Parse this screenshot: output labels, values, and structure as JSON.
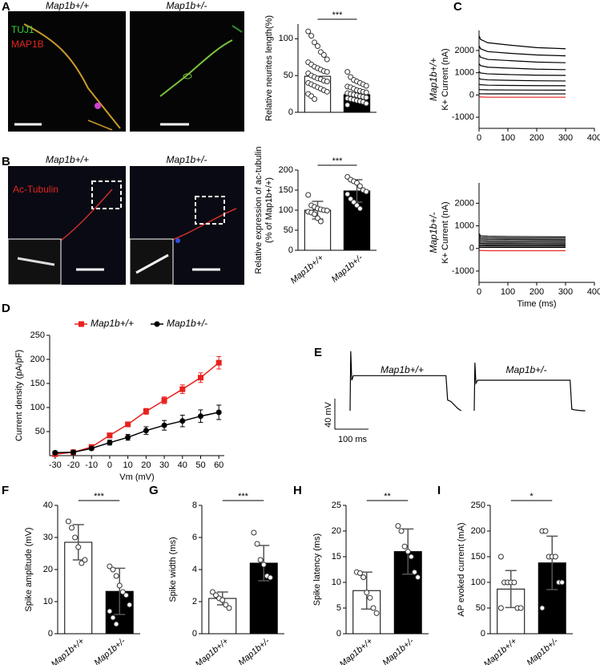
{
  "panel_labels": [
    "A",
    "B",
    "C",
    "D",
    "E",
    "F",
    "G",
    "H",
    "I"
  ],
  "images": {
    "A": {
      "stain_1": "TUJ1",
      "stain_2": "MAP1B",
      "left": "Map1b+/+",
      "right": "Map1b+/-"
    },
    "B": {
      "stain": "Ac-Tubulin",
      "left": "Map1b+/+",
      "right": "Map1b+/-"
    }
  },
  "chart_data": [
    {
      "type": "bar",
      "ylabel": "Relative neurites length(%)",
      "categories": [
        null,
        null
      ],
      "values": [
        49,
        24
      ],
      "colors": [
        "#ffffff",
        "#000000"
      ],
      "ylim": [
        0,
        120
      ],
      "yticks": [
        0,
        50,
        100
      ],
      "significance": "***",
      "points": [
        [
          110,
          104,
          95,
          90,
          82,
          78,
          72,
          68,
          65,
          62,
          60,
          58,
          56,
          55,
          53,
          50,
          48,
          46,
          45,
          43,
          42,
          40,
          38,
          36,
          34,
          32,
          30,
          28,
          25,
          22,
          18
        ],
        [
          55,
          48,
          44,
          42,
          40,
          38,
          36,
          35,
          34,
          32,
          30,
          29,
          28,
          27,
          26,
          25,
          24,
          23,
          22,
          21,
          20,
          19,
          18,
          17,
          16,
          15,
          14,
          12,
          10
        ]
      ]
    },
    {
      "type": "bar",
      "ylabel": [
        "Relative expression of ac-tubulin",
        "(% of Map1b+/+)"
      ],
      "categories": [
        "Map1b+/+",
        "Map1b+/-"
      ],
      "values": [
        100,
        148
      ],
      "errors": [
        22,
        28
      ],
      "colors": [
        "#ffffff",
        "#000000"
      ],
      "ylim": [
        0,
        200
      ],
      "yticks": [
        0,
        50,
        100,
        150,
        200
      ],
      "significance": "***",
      "points": [
        [
          138,
          112,
          108,
          104,
          102,
          100,
          99,
          96,
          94,
          90,
          80,
          72
        ],
        [
          183,
          176,
          172,
          168,
          160,
          150,
          146,
          140,
          128,
          120,
          112,
          104
        ]
      ]
    },
    {
      "type": "line",
      "label": "Map1b+/+",
      "ylabel": "K+ Current (nA)",
      "xlim": [
        0,
        400
      ],
      "xticks": [
        0,
        100,
        200,
        300,
        400
      ],
      "ylim": [
        -1500,
        2900
      ],
      "yticks": [
        -1000,
        0,
        1000,
        2000
      ],
      "x": [
        1,
        5,
        30,
        100,
        200,
        300
      ],
      "series": [
        {
          "color": "#000000",
          "values": [
            2650,
            2500,
            2350,
            2250,
            2130,
            2080
          ]
        },
        {
          "color": "#000000",
          "values": [
            2200,
            2080,
            1950,
            1880,
            1800,
            1760
          ]
        },
        {
          "color": "#000000",
          "values": [
            1800,
            1700,
            1600,
            1550,
            1480,
            1450
          ]
        },
        {
          "color": "#000000",
          "values": [
            1400,
            1320,
            1250,
            1210,
            1160,
            1140
          ]
        },
        {
          "color": "#000000",
          "values": [
            1050,
            990,
            950,
            920,
            890,
            880
          ]
        },
        {
          "color": "#000000",
          "values": [
            750,
            710,
            680,
            660,
            640,
            630
          ]
        },
        {
          "color": "#000000",
          "values": [
            480,
            460,
            440,
            430,
            420,
            415
          ]
        },
        {
          "color": "#000000",
          "values": [
            250,
            240,
            230,
            225,
            220,
            218
          ]
        },
        {
          "color": "#000000",
          "values": [
            60,
            55,
            50,
            50,
            48,
            48
          ]
        },
        {
          "color": "#e8221f",
          "values": [
            -80,
            -90,
            -100,
            -100,
            -100,
            -100
          ]
        }
      ]
    },
    {
      "type": "line",
      "label": "Map1b+/-",
      "ylabel": "K+ Current (nA)",
      "xlabel": "Time (ms)",
      "xlim": [
        0,
        400
      ],
      "xticks": [
        0,
        100,
        200,
        300,
        400
      ],
      "ylim": [
        -1500,
        2900
      ],
      "yticks": [
        -1000,
        0,
        1000,
        2000
      ],
      "x": [
        1,
        5,
        30,
        100,
        200,
        300
      ],
      "series": [
        {
          "color": "#000000",
          "values": [
            650,
            560,
            540,
            530,
            520,
            510
          ]
        },
        {
          "color": "#000000",
          "values": [
            560,
            490,
            470,
            460,
            455,
            450
          ]
        },
        {
          "color": "#000000",
          "values": [
            470,
            420,
            405,
            400,
            395,
            390
          ]
        },
        {
          "color": "#000000",
          "values": [
            390,
            350,
            340,
            335,
            330,
            330
          ]
        },
        {
          "color": "#000000",
          "values": [
            310,
            280,
            275,
            270,
            268,
            265
          ]
        },
        {
          "color": "#000000",
          "values": [
            240,
            220,
            215,
            212,
            210,
            208
          ]
        },
        {
          "color": "#000000",
          "values": [
            170,
            160,
            155,
            153,
            152,
            150
          ]
        },
        {
          "color": "#000000",
          "values": [
            110,
            105,
            100,
            98,
            97,
            96
          ]
        },
        {
          "color": "#000000",
          "values": [
            50,
            48,
            46,
            45,
            45,
            45
          ]
        },
        {
          "color": "#e8221f",
          "values": [
            -80,
            -90,
            -100,
            -100,
            -100,
            -100
          ]
        }
      ]
    },
    {
      "type": "line",
      "ylabel": "Current density (pA/pF)",
      "xlabel": "Vm (mV)",
      "legend": "top",
      "xlim": [
        -33,
        63
      ],
      "xticks": [
        -30,
        -20,
        -10,
        0,
        10,
        20,
        30,
        40,
        50,
        60
      ],
      "ylim": [
        0,
        250
      ],
      "yticks": [
        50,
        100,
        150,
        200,
        250
      ],
      "x": [
        -30,
        -20,
        -10,
        0,
        10,
        20,
        30,
        40,
        50,
        60
      ],
      "series": [
        {
          "name": "Map1b+/+",
          "color": "#e8221f",
          "marker": "square",
          "values": [
            3,
            7,
            18,
            42,
            65,
            92,
            115,
            138,
            162,
            193
          ],
          "errors": [
            2,
            2,
            3,
            5,
            5,
            6,
            7,
            9,
            10,
            13
          ]
        },
        {
          "name": "Map1b+/-",
          "color": "#000000",
          "marker": "circle",
          "values": [
            6,
            7,
            15,
            27,
            38,
            52,
            63,
            72,
            82,
            90
          ],
          "errors": [
            2,
            2,
            3,
            5,
            6,
            8,
            10,
            12,
            13,
            15
          ]
        }
      ]
    },
    {
      "type": "line",
      "x": [
        0,
        2,
        5,
        10,
        50,
        150,
        250,
        285,
        290,
        300,
        320,
        330
      ],
      "scalebar": {
        "x": {
          "value": 100,
          "label": "100 ms"
        },
        "y": {
          "value": 40,
          "label": "40 mV"
        }
      },
      "series": [
        {
          "name": "Map1b+/+",
          "color": "#000000",
          "values": [
            0,
            78,
            40,
            46,
            46,
            46,
            46,
            46,
            14,
            12,
            3,
            0
          ]
        },
        {
          "name": "Map1b+/-",
          "color": "#000000",
          "values": [
            0,
            63,
            36,
            40,
            40,
            40,
            40,
            40,
            2,
            1,
            0,
            0
          ]
        }
      ]
    },
    {
      "type": "bar",
      "ylabel": "Spike  amplitude (mV)",
      "categories": [
        "Map1b+/+",
        "Map1b+/-"
      ],
      "values": [
        28.5,
        13.2
      ],
      "errors": [
        5.5,
        7.2
      ],
      "colors": [
        "#ffffff",
        "#000000"
      ],
      "ylim": [
        0,
        40
      ],
      "yticks": [
        0,
        10,
        20,
        30,
        40
      ],
      "significance": "***",
      "points": [
        [
          35,
          33,
          30,
          27,
          22,
          23
        ],
        [
          21,
          20,
          18,
          15,
          13,
          12,
          9,
          7,
          5,
          3
        ]
      ]
    },
    {
      "type": "bar",
      "ylabel": "Spike width (ms)",
      "categories": [
        "Map1b+/+",
        "Map1b+/-"
      ],
      "values": [
        2.2,
        4.4
      ],
      "errors": [
        0.4,
        1.1
      ],
      "colors": [
        "#ffffff",
        "#000000"
      ],
      "ylim": [
        0,
        8
      ],
      "yticks": [
        0,
        2,
        4,
        6,
        8
      ],
      "significance": "***",
      "points": [
        [
          2.6,
          2.4,
          2.2,
          2.1,
          1.8,
          1.6
        ],
        [
          6.3,
          5.6,
          4.6,
          4.3,
          3.6,
          3.5
        ]
      ]
    },
    {
      "type": "bar",
      "ylabel": "Spike latency (ms)",
      "categories": [
        "Map1b+/+",
        "Map1b+/-"
      ],
      "values": [
        8.4,
        16.0
      ],
      "errors": [
        3.6,
        4.4
      ],
      "colors": [
        "#ffffff",
        "#000000"
      ],
      "ylim": [
        0,
        25
      ],
      "yticks": [
        0,
        5,
        10,
        15,
        20,
        25
      ],
      "significance": "**",
      "points": [
        [
          12,
          11.8,
          11,
          8,
          7,
          5,
          4
        ],
        [
          21,
          20,
          17,
          16,
          15,
          12,
          11
        ]
      ]
    },
    {
      "type": "bar",
      "ylabel": "AP evoked current (mA)",
      "categories": [
        "Map1b+/+",
        "Map1b+/-"
      ],
      "values": [
        87,
        138
      ],
      "errors": [
        36,
        52
      ],
      "colors": [
        "#ffffff",
        "#000000"
      ],
      "ylim": [
        0,
        250
      ],
      "yticks": [
        0,
        50,
        100,
        150,
        200,
        250
      ],
      "significance": "*",
      "points": [
        [
          150,
          100,
          100,
          100,
          100,
          50,
          50,
          50
        ],
        [
          200,
          200,
          150,
          150,
          150,
          100,
          100,
          50
        ]
      ]
    }
  ]
}
